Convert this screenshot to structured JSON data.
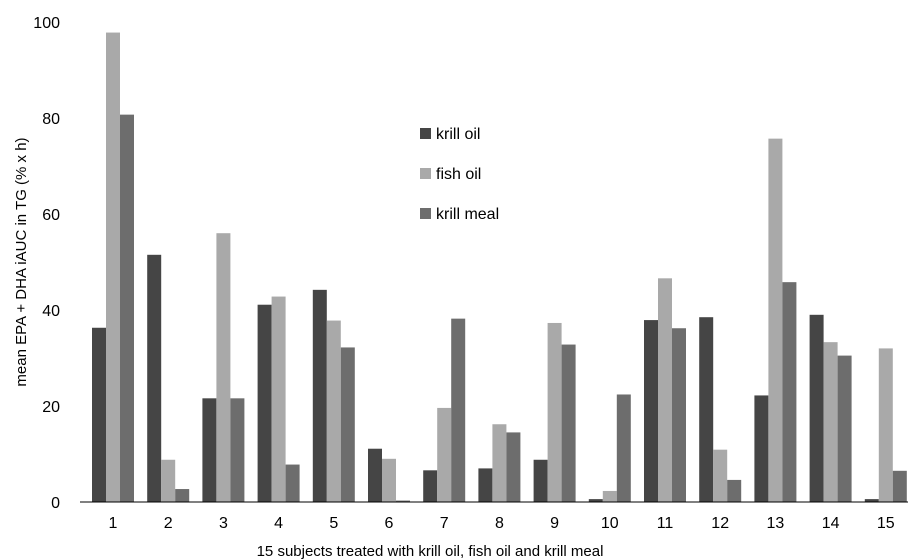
{
  "chart_data": {
    "type": "bar",
    "title": "",
    "xlabel": "15 subjects treated with krill oil, fish oil and krill meal",
    "ylabel": "mean EPA + DHA iAUC in TG (% x h)",
    "ylim": [
      0,
      100
    ],
    "yticks": [
      0,
      20,
      40,
      60,
      80,
      100
    ],
    "grid": false,
    "legend_position": "upper-center",
    "categories": [
      "1",
      "2",
      "3",
      "4",
      "5",
      "6",
      "7",
      "8",
      "9",
      "10",
      "11",
      "12",
      "13",
      "14",
      "15"
    ],
    "series": [
      {
        "name": "krill oil",
        "color": "#454545",
        "values": [
          36.3,
          51.5,
          21.6,
          41.1,
          44.2,
          11.1,
          6.6,
          7.0,
          8.8,
          0.6,
          37.9,
          38.5,
          22.2,
          39.0,
          0.6
        ]
      },
      {
        "name": "fish oil",
        "color": "#a9a9a9",
        "values": [
          97.8,
          8.8,
          56.0,
          42.8,
          37.8,
          9.0,
          19.6,
          16.2,
          37.3,
          2.3,
          46.6,
          10.9,
          75.7,
          33.3,
          32.0
        ]
      },
      {
        "name": "krill meal",
        "color": "#6d6d6d",
        "values": [
          80.7,
          2.7,
          21.6,
          7.8,
          32.2,
          0.3,
          38.2,
          14.5,
          32.8,
          22.4,
          36.2,
          4.6,
          45.8,
          30.5,
          6.5
        ]
      }
    ]
  }
}
